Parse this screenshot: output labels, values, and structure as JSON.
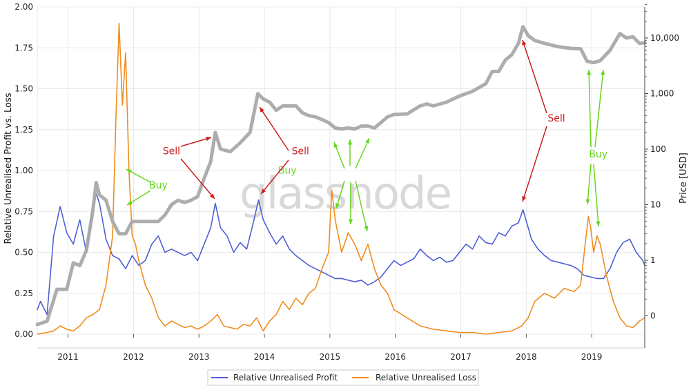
{
  "watermark": "glassnode",
  "chart_data": {
    "type": "line",
    "ylabel": "Relative Unrealised Profit vs. Loss",
    "y2label": "Price [USD]",
    "xlim": [
      2010.55,
      2019.83
    ],
    "ylim": [
      0,
      2
    ],
    "y2_scale": "log",
    "y2_ticks": [
      "0",
      "1",
      "10",
      "100",
      "1,000",
      "10,000"
    ],
    "y2_tick_values": [
      0.1,
      1,
      10,
      100,
      1000,
      10000
    ],
    "x_ticks": [
      "2011",
      "2012",
      "2013",
      "2014",
      "2015",
      "2016",
      "2017",
      "2018",
      "2019"
    ],
    "y_ticks": [
      "0.00",
      "0.25",
      "0.50",
      "0.75",
      "1.00",
      "1.25",
      "1.50",
      "1.75",
      "2.00"
    ],
    "grid": true,
    "legend_position": "bottom-center",
    "colors": {
      "profit": "#4e5fd6",
      "loss": "#f08c1e",
      "price": "#a9a9a9",
      "buy": "#66d61e",
      "sell": "#cc1c1c"
    },
    "series": [
      {
        "name": "Relative Unrealised Profit",
        "key": "profit",
        "x": [
          2010.55,
          2010.6,
          2010.7,
          2010.8,
          2010.9,
          2011.0,
          2011.1,
          2011.2,
          2011.3,
          2011.4,
          2011.45,
          2011.5,
          2011.6,
          2011.7,
          2011.8,
          2011.9,
          2012.0,
          2012.1,
          2012.2,
          2012.3,
          2012.4,
          2012.5,
          2012.6,
          2012.7,
          2012.8,
          2012.9,
          2013.0,
          2013.1,
          2013.2,
          2013.27,
          2013.35,
          2013.45,
          2013.55,
          2013.65,
          2013.75,
          2013.85,
          2013.93,
          2014.0,
          2014.1,
          2014.2,
          2014.3,
          2014.4,
          2014.5,
          2014.6,
          2014.7,
          2014.8,
          2014.9,
          2015.0,
          2015.1,
          2015.2,
          2015.3,
          2015.4,
          2015.5,
          2015.6,
          2015.7,
          2015.8,
          2015.9,
          2016.0,
          2016.1,
          2016.2,
          2016.3,
          2016.4,
          2016.5,
          2016.6,
          2016.7,
          2016.8,
          2016.9,
          2017.0,
          2017.1,
          2017.2,
          2017.3,
          2017.4,
          2017.5,
          2017.6,
          2017.7,
          2017.8,
          2017.9,
          2017.97,
          2018.05,
          2018.1,
          2018.2,
          2018.3,
          2018.4,
          2018.5,
          2018.6,
          2018.7,
          2018.8,
          2018.9,
          2019.0,
          2019.1,
          2019.2,
          2019.3,
          2019.4,
          2019.5,
          2019.6,
          2019.7,
          2019.8,
          2019.83
        ],
        "y": [
          0.15,
          0.2,
          0.12,
          0.6,
          0.78,
          0.62,
          0.55,
          0.7,
          0.5,
          0.78,
          0.86,
          0.8,
          0.58,
          0.48,
          0.46,
          0.4,
          0.48,
          0.42,
          0.45,
          0.55,
          0.6,
          0.5,
          0.52,
          0.5,
          0.48,
          0.5,
          0.45,
          0.55,
          0.65,
          0.8,
          0.65,
          0.6,
          0.5,
          0.56,
          0.52,
          0.68,
          0.82,
          0.7,
          0.62,
          0.55,
          0.6,
          0.52,
          0.48,
          0.45,
          0.42,
          0.4,
          0.38,
          0.36,
          0.34,
          0.34,
          0.33,
          0.32,
          0.33,
          0.3,
          0.32,
          0.35,
          0.4,
          0.45,
          0.42,
          0.44,
          0.46,
          0.52,
          0.48,
          0.45,
          0.47,
          0.44,
          0.45,
          0.5,
          0.55,
          0.52,
          0.6,
          0.56,
          0.55,
          0.62,
          0.6,
          0.66,
          0.68,
          0.76,
          0.65,
          0.58,
          0.52,
          0.48,
          0.45,
          0.44,
          0.43,
          0.42,
          0.4,
          0.36,
          0.35,
          0.34,
          0.34,
          0.4,
          0.5,
          0.56,
          0.58,
          0.5,
          0.45,
          0.42
        ]
      },
      {
        "name": "Relative Unrealised Loss",
        "key": "loss",
        "x": [
          2010.55,
          2010.7,
          2010.8,
          2010.9,
          2011.0,
          2011.1,
          2011.2,
          2011.3,
          2011.4,
          2011.5,
          2011.6,
          2011.7,
          2011.75,
          2011.8,
          2011.85,
          2011.9,
          2011.95,
          2012.0,
          2012.05,
          2012.1,
          2012.2,
          2012.3,
          2012.4,
          2012.5,
          2012.6,
          2012.7,
          2012.8,
          2012.9,
          2013.0,
          2013.1,
          2013.2,
          2013.3,
          2013.4,
          2013.5,
          2013.6,
          2013.7,
          2013.8,
          2013.9,
          2014.0,
          2014.1,
          2014.2,
          2014.3,
          2014.4,
          2014.5,
          2014.6,
          2014.7,
          2014.8,
          2014.9,
          2015.0,
          2015.05,
          2015.1,
          2015.2,
          2015.3,
          2015.4,
          2015.5,
          2015.6,
          2015.7,
          2015.8,
          2015.9,
          2016.0,
          2016.2,
          2016.4,
          2016.6,
          2016.8,
          2017.0,
          2017.2,
          2017.4,
          2017.6,
          2017.8,
          2017.95,
          2018.05,
          2018.15,
          2018.3,
          2018.45,
          2018.6,
          2018.75,
          2018.85,
          2018.92,
          2018.97,
          2019.0,
          2019.05,
          2019.1,
          2019.15,
          2019.25,
          2019.35,
          2019.45,
          2019.55,
          2019.65,
          2019.75,
          2019.83
        ],
        "y": [
          0.0,
          0.01,
          0.02,
          0.05,
          0.03,
          0.02,
          0.05,
          0.1,
          0.12,
          0.15,
          0.3,
          0.6,
          1.3,
          1.9,
          1.4,
          1.72,
          1.0,
          0.6,
          0.55,
          0.45,
          0.3,
          0.22,
          0.1,
          0.05,
          0.08,
          0.06,
          0.04,
          0.05,
          0.03,
          0.05,
          0.08,
          0.12,
          0.05,
          0.04,
          0.03,
          0.06,
          0.05,
          0.1,
          0.02,
          0.08,
          0.12,
          0.2,
          0.15,
          0.22,
          0.18,
          0.25,
          0.28,
          0.4,
          0.5,
          0.88,
          0.7,
          0.5,
          0.62,
          0.55,
          0.45,
          0.55,
          0.4,
          0.3,
          0.25,
          0.15,
          0.1,
          0.05,
          0.03,
          0.02,
          0.01,
          0.01,
          0.0,
          0.01,
          0.02,
          0.05,
          0.1,
          0.2,
          0.25,
          0.22,
          0.28,
          0.26,
          0.3,
          0.55,
          0.72,
          0.66,
          0.5,
          0.6,
          0.55,
          0.35,
          0.2,
          0.1,
          0.05,
          0.04,
          0.08,
          0.1
        ]
      },
      {
        "name": "Price",
        "key": "price",
        "x": [
          2010.55,
          2010.7,
          2010.85,
          2011.0,
          2011.1,
          2011.2,
          2011.3,
          2011.4,
          2011.45,
          2011.5,
          2011.6,
          2011.7,
          2011.8,
          2011.9,
          2012.0,
          2012.1,
          2012.2,
          2012.3,
          2012.4,
          2012.5,
          2012.6,
          2012.7,
          2012.8,
          2012.9,
          2013.0,
          2013.1,
          2013.2,
          2013.27,
          2013.35,
          2013.5,
          2013.65,
          2013.8,
          2013.92,
          2014.0,
          2014.1,
          2014.2,
          2014.3,
          2014.4,
          2014.5,
          2014.6,
          2014.7,
          2014.8,
          2014.9,
          2015.0,
          2015.1,
          2015.2,
          2015.3,
          2015.4,
          2015.5,
          2015.6,
          2015.7,
          2015.8,
          2015.9,
          2016.0,
          2016.2,
          2016.4,
          2016.5,
          2016.6,
          2016.8,
          2017.0,
          2017.2,
          2017.4,
          2017.5,
          2017.6,
          2017.7,
          2017.8,
          2017.9,
          2017.97,
          2018.05,
          2018.15,
          2018.3,
          2018.5,
          2018.7,
          2018.85,
          2018.95,
          2019.05,
          2019.15,
          2019.3,
          2019.45,
          2019.55,
          2019.65,
          2019.75,
          2019.83
        ],
        "y": [
          0.07,
          0.08,
          0.3,
          0.3,
          0.9,
          0.8,
          1.5,
          8,
          25,
          15,
          12,
          5,
          3,
          3,
          5,
          5,
          5,
          5,
          5,
          6.5,
          10,
          12,
          11,
          12,
          14,
          30,
          60,
          200,
          100,
          90,
          130,
          200,
          1000,
          800,
          700,
          500,
          600,
          600,
          600,
          450,
          400,
          380,
          340,
          300,
          240,
          230,
          240,
          230,
          260,
          260,
          240,
          300,
          380,
          420,
          430,
          600,
          650,
          600,
          700,
          900,
          1100,
          1500,
          2500,
          2500,
          4000,
          5000,
          8000,
          16000,
          11000,
          9000,
          8000,
          7000,
          6500,
          6400,
          3800,
          3600,
          3900,
          6000,
          12000,
          10000,
          10500,
          8000,
          8200
        ]
      }
    ],
    "annotations": [
      {
        "text": "Buy",
        "color": "buy",
        "x": 2012.4,
        "y": 0.89
      },
      {
        "text": "Sell",
        "color": "sell",
        "x": 2012.6,
        "y": 1.1
      },
      {
        "text": "Sell",
        "color": "sell",
        "x": 2014.57,
        "y": 1.1
      },
      {
        "text": "Buy",
        "color": "buy",
        "x": 2014.37,
        "y": 0.98
      },
      {
        "text": "Sell",
        "color": "sell",
        "x": 2018.48,
        "y": 1.3
      },
      {
        "text": "Buy",
        "color": "buy",
        "x": 2019.12,
        "y": 1.08
      }
    ]
  }
}
